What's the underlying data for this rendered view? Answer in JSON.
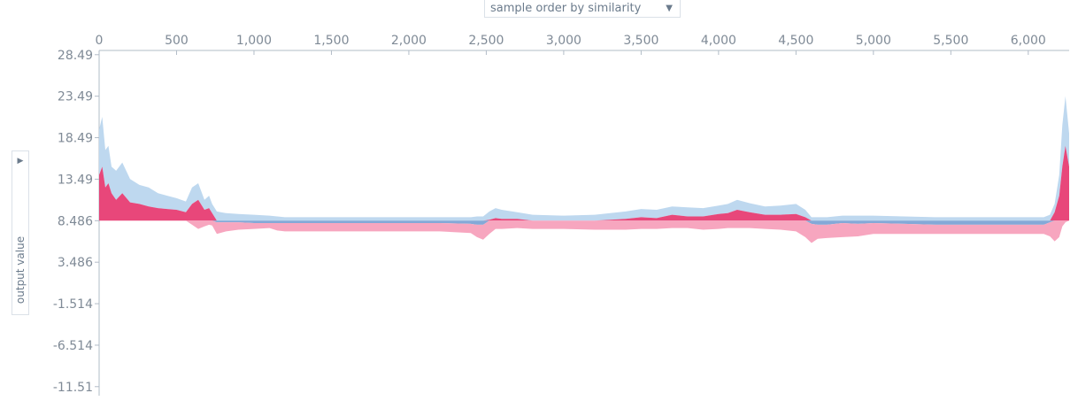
{
  "controls": {
    "order_select": {
      "value": "sample order by similarity"
    },
    "y_select": {
      "value": "output value"
    }
  },
  "chart_data": {
    "type": "area",
    "title": "",
    "xlabel": "",
    "ylabel": "output value",
    "x_ticks": [
      0,
      500,
      1000,
      1500,
      2000,
      2500,
      3000,
      3500,
      4000,
      4500,
      5000,
      5500,
      6000
    ],
    "x_tick_labels": [
      "0",
      "500",
      "1,000",
      "1,500",
      "2,000",
      "2,500",
      "3,000",
      "3,500",
      "4,000",
      "4,500",
      "5,000",
      "5,500",
      "6,000"
    ],
    "y_ticks": [
      28.49,
      23.49,
      18.49,
      13.49,
      8.486,
      3.486,
      -1.514,
      -6.514,
      -11.51
    ],
    "y_tick_labels": [
      "28.49",
      "23.49",
      "18.49",
      "13.49",
      "8.486",
      "3.486",
      "-1.514",
      "-6.514",
      "-11.51"
    ],
    "xlim": [
      0,
      6264
    ],
    "ylim": [
      -12.6,
      29.0
    ],
    "base_value": 8.486,
    "colors": {
      "positive_dark": "#e6336b",
      "positive_light": "#f7a6bf",
      "negative_dark": "#6f9ad0",
      "negative_light": "#bed8ef",
      "axis": "#b2bcc7"
    },
    "series": [
      {
        "name": "",
        "x": [
          0,
          20,
          40,
          60,
          80,
          110,
          150,
          200,
          260,
          320,
          380,
          440,
          500,
          560,
          600,
          640,
          680,
          710,
          730,
          760,
          820,
          900,
          1000,
          1100,
          1150,
          1200,
          1400,
          1600,
          1800,
          2000,
          2200,
          2400,
          2440,
          2480,
          2520,
          2560,
          2600,
          2700,
          2800,
          3000,
          3200,
          3400,
          3500,
          3600,
          3700,
          3800,
          3900,
          4000,
          4060,
          4120,
          4200,
          4300,
          4400,
          4500,
          4560,
          4600,
          4640,
          4700,
          4800,
          4900,
          5000,
          5200,
          5400,
          5600,
          5800,
          6000,
          6100,
          6140,
          6170,
          6200,
          6220,
          6240,
          6264
        ],
        "upper": [
          19.5,
          21.0,
          17.0,
          17.5,
          15.0,
          14.5,
          15.5,
          13.5,
          12.8,
          12.5,
          11.8,
          11.5,
          11.2,
          10.8,
          12.5,
          13.0,
          11.0,
          11.5,
          10.5,
          9.6,
          9.4,
          9.3,
          9.2,
          9.1,
          9.0,
          8.9,
          8.9,
          8.9,
          8.9,
          8.9,
          8.9,
          8.9,
          9.0,
          9.0,
          9.6,
          10.0,
          9.8,
          9.5,
          9.2,
          9.1,
          9.2,
          9.6,
          9.9,
          9.8,
          10.2,
          10.1,
          10.0,
          10.3,
          10.5,
          11.0,
          10.6,
          10.2,
          10.3,
          10.5,
          9.8,
          8.9,
          8.9,
          8.9,
          9.1,
          9.1,
          9.1,
          9.0,
          8.9,
          8.9,
          8.9,
          8.9,
          8.9,
          9.2,
          10.5,
          14.0,
          20.0,
          23.5,
          19.0
        ],
        "mid": [
          14.0,
          15.0,
          12.5,
          13.0,
          11.8,
          11.0,
          11.8,
          10.7,
          10.5,
          10.2,
          10.0,
          9.9,
          9.8,
          9.5,
          10.5,
          11.0,
          9.8,
          10.0,
          9.4,
          8.3,
          8.3,
          8.3,
          8.2,
          8.2,
          8.2,
          8.2,
          8.2,
          8.2,
          8.2,
          8.2,
          8.2,
          8.1,
          8.0,
          8.0,
          8.6,
          8.8,
          8.7,
          8.7,
          8.5,
          8.5,
          8.5,
          8.7,
          8.9,
          8.8,
          9.2,
          9.0,
          9.0,
          9.3,
          9.4,
          9.8,
          9.5,
          9.2,
          9.2,
          9.3,
          8.9,
          8.1,
          8.0,
          8.0,
          8.2,
          8.1,
          8.2,
          8.1,
          8.0,
          8.0,
          8.0,
          8.0,
          8.0,
          8.3,
          9.5,
          11.5,
          15.0,
          17.5,
          15.0
        ],
        "lower": [
          9.0,
          8.5,
          8.6,
          8.7,
          8.8,
          8.8,
          8.9,
          8.9,
          8.9,
          8.9,
          8.9,
          8.8,
          8.7,
          8.5,
          8.0,
          7.5,
          7.8,
          8.0,
          7.9,
          6.9,
          7.2,
          7.4,
          7.5,
          7.6,
          7.3,
          7.2,
          7.2,
          7.2,
          7.2,
          7.2,
          7.2,
          7.0,
          6.5,
          6.2,
          6.9,
          7.5,
          7.5,
          7.6,
          7.5,
          7.5,
          7.4,
          7.4,
          7.5,
          7.5,
          7.6,
          7.6,
          7.4,
          7.5,
          7.6,
          7.6,
          7.6,
          7.5,
          7.4,
          7.2,
          6.5,
          5.8,
          6.3,
          6.4,
          6.5,
          6.6,
          6.9,
          6.9,
          6.9,
          6.9,
          6.9,
          6.9,
          6.9,
          6.6,
          6.0,
          6.5,
          7.8,
          8.3,
          8.5
        ]
      }
    ]
  }
}
